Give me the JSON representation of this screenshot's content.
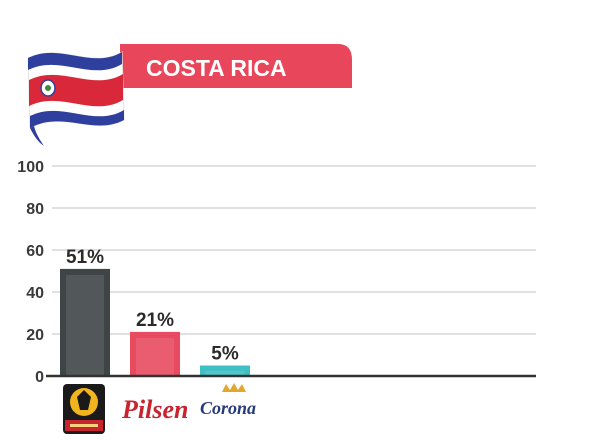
{
  "header": {
    "title": "COSTA RICA"
  },
  "colors": {
    "banner": "#e8465a",
    "grid": "#c9cdd0",
    "axis": "#333333",
    "flag_blue": "#2f3f9e",
    "flag_red": "#d9283a"
  },
  "chart_data": {
    "type": "bar",
    "categories": [
      "Imperial",
      "Pilsen",
      "Corona"
    ],
    "values": [
      51,
      21,
      5
    ],
    "data_labels": [
      "51%",
      "21%",
      "5%"
    ],
    "bar_colors": [
      "#3f4447",
      "#e84a60",
      "#3fc0c4"
    ],
    "ylim": [
      0,
      100
    ],
    "yticks": [
      "0",
      "20",
      "40",
      "60",
      "80",
      "100"
    ],
    "grid": true,
    "legend": "none",
    "title": "COSTA RICA",
    "xlabel": "",
    "ylabel": ""
  }
}
